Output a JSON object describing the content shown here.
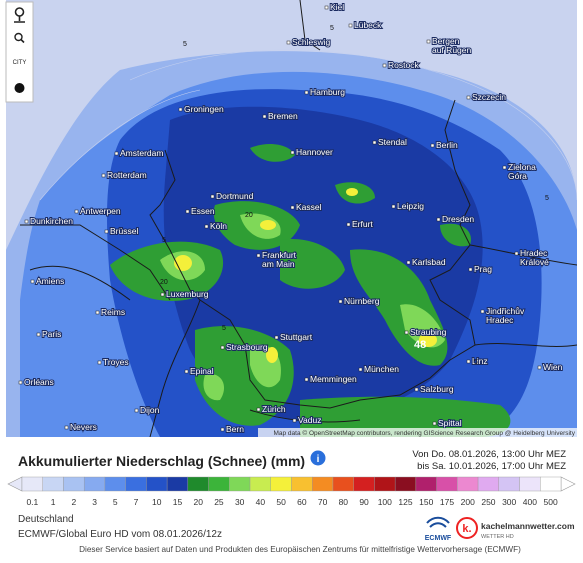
{
  "controls": {
    "city": "CITY"
  },
  "map": {
    "cities": [
      "Schleswig",
      [
        "Bergen",
        "auf Rügen"
      ],
      "Rostock",
      "Szczecin",
      "Groningen",
      "Hamburg",
      "Bremen",
      "Amsterdam",
      "Hannover",
      "Stendal",
      "Berlin",
      "Rotterdam",
      "Dortmund",
      "Antwerpen",
      "Essen",
      "Kassel",
      "Leipzig",
      "Dresden",
      "Dunkirchen",
      "Brüssel",
      "Köln",
      "Erfurt",
      [
        "Frankfurt",
        "am Main"
      ],
      "Karlsbad",
      "Prag",
      "Amiens",
      "Luxemburg",
      "Nürnberg",
      "Reims",
      [
        "Hradec",
        "Králové"
      ],
      [
        "Jindřichův",
        "Hradec"
      ],
      "Paris",
      "Stuttgart",
      "Straubing",
      "Strasbourg",
      "Troyes",
      "München",
      "Linz",
      "Epinal",
      "Memmingen",
      "Salzburg",
      "Orléans",
      "Dijon",
      "Zürich",
      "Vaduz",
      "Wien",
      "Nevers",
      "Bern",
      "Spittal",
      [
        "Zielona",
        "Góra"
      ],
      "Lübeck",
      "Kiel"
    ],
    "contour_labels": [
      5,
      5,
      5,
      20,
      5,
      20,
      5,
      5
    ],
    "max_value": 48,
    "attribution": "Map data © OpenStreetMap contributors, rendering GIScience Research Group @ Heidelberg University"
  },
  "header": {
    "title": "Akkumulierter Niederschlag (Schnee) (mm)",
    "info": "i",
    "from": "Von Do. 08.01.2026, 13:00 Uhr MEZ",
    "to": "bis Sa. 10.01.2026, 17:00 Uhr MEZ"
  },
  "legend": {
    "steps": [
      {
        "value": 0.1,
        "color": "#e6e8f8"
      },
      {
        "value": 1,
        "color": "#c8d6f4"
      },
      {
        "value": 2,
        "color": "#a9c2f2"
      },
      {
        "value": 3,
        "color": "#86aaf0"
      },
      {
        "value": 5,
        "color": "#5d8eec"
      },
      {
        "value": 7,
        "color": "#3a6fe0"
      },
      {
        "value": 10,
        "color": "#2452c8"
      },
      {
        "value": 15,
        "color": "#1a3aa4"
      },
      {
        "value": 20,
        "color": "#1f8a2c"
      },
      {
        "value": 25,
        "color": "#3cb43a"
      },
      {
        "value": 30,
        "color": "#7fd858"
      },
      {
        "value": 40,
        "color": "#c8ec50"
      },
      {
        "value": 50,
        "color": "#f4f03a"
      },
      {
        "value": 60,
        "color": "#f8c030"
      },
      {
        "value": 70,
        "color": "#f48c22"
      },
      {
        "value": 80,
        "color": "#e8501e"
      },
      {
        "value": 90,
        "color": "#d42020"
      },
      {
        "value": 100,
        "color": "#b01418"
      },
      {
        "value": 125,
        "color": "#8a0e20"
      },
      {
        "value": 150,
        "color": "#b0206c"
      },
      {
        "value": 175,
        "color": "#d850a8"
      },
      {
        "value": 200,
        "color": "#ec88d0"
      },
      {
        "value": 250,
        "color": "#e0aaf0"
      },
      {
        "value": 300,
        "color": "#d4c4f4"
      },
      {
        "value": 400,
        "color": "#ece4fa"
      },
      {
        "value": 500,
        "color": "#ffffff"
      }
    ]
  },
  "info": {
    "region": "Deutschland",
    "model": "ECMWF/Global Euro HD vom 08.01.2026/12z",
    "footer": "Dieser Service basiert auf Daten und Produkten des Europäischen Zentrums für mittelfristige Wettervorhersage (ECMWF)",
    "ecmwf": "ECMWF",
    "brand": "kachelmannwetter.com",
    "brand_sub": "WETTER HD"
  }
}
